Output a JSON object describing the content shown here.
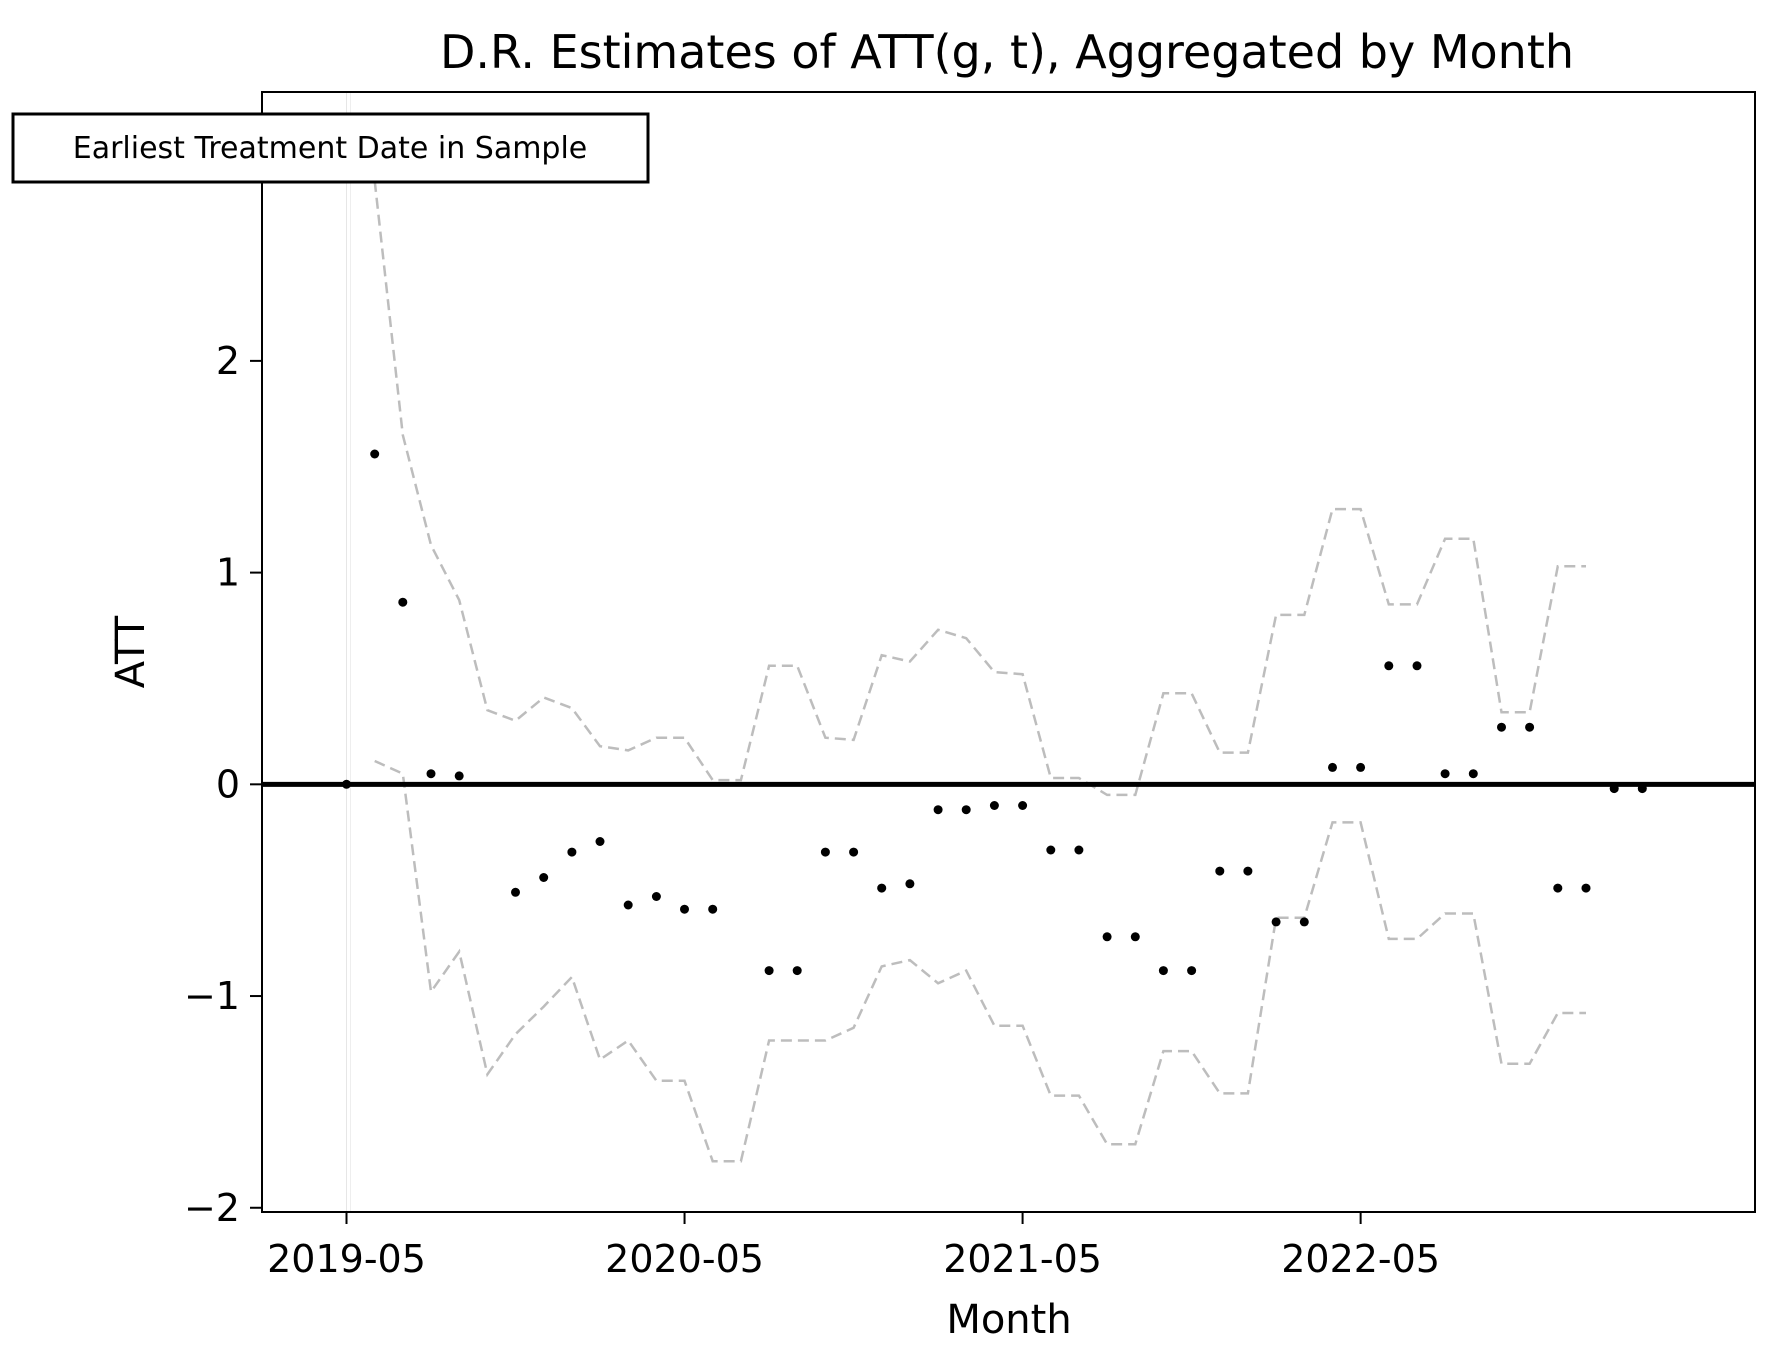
{
  "chart_data": {
    "type": "scatter",
    "title": "D.R. Estimates of ATT(g, t), Aggregated by Month",
    "xlabel": "Month",
    "ylabel": "ATT",
    "x_ticks": [
      "2019-05",
      "2020-05",
      "2021-05",
      "2022-05"
    ],
    "y_ticks": [
      -2,
      -1,
      0,
      1,
      2
    ],
    "y_tick_labels": [
      "−2",
      "−1",
      "0",
      "1",
      "2"
    ],
    "ylim": [
      -2.02,
      3.27
    ],
    "xlim": [
      "2019-02",
      "2023-07"
    ],
    "grid": false,
    "annotation": {
      "text": "Earliest Treatment Date in Sample",
      "x": "2019-05",
      "placement": "top-left"
    },
    "reference_line": {
      "y": 0,
      "color": "#000000"
    },
    "series": [
      {
        "role": "point-estimate",
        "color": "#000000",
        "marker": "dot",
        "x": [
          "2019-05",
          "2019-06",
          "2019-07",
          "2019-08",
          "2019-09",
          "2019-10",
          "2019-11",
          "2019-12",
          "2020-01",
          "2020-02",
          "2020-03",
          "2020-04",
          "2020-05",
          "2020-06",
          "2020-07",
          "2020-08",
          "2020-09",
          "2020-10",
          "2020-11",
          "2020-12",
          "2021-01",
          "2021-02",
          "2021-03",
          "2021-04",
          "2021-05",
          "2021-06",
          "2021-07",
          "2021-08",
          "2021-09",
          "2021-10",
          "2021-11",
          "2021-12",
          "2022-01",
          "2022-02",
          "2022-03",
          "2022-04",
          "2022-05",
          "2022-06",
          "2022-07",
          "2022-08",
          "2022-09",
          "2022-10",
          "2022-11",
          "2022-12",
          "2023-01",
          "2023-02",
          "2023-03",
          "2023-04",
          "2023-05",
          "2023-06"
        ],
        "values": [
          0.0,
          1.56,
          0.86,
          0.05,
          0.04,
          null,
          -0.51,
          -0.44,
          -0.32,
          -0.27,
          -0.57,
          -0.53,
          -0.59,
          -0.59,
          null,
          -0.88,
          -0.88,
          -0.32,
          -0.32,
          -0.49,
          -0.47,
          -0.12,
          -0.12,
          -0.1,
          -0.1,
          -0.31,
          -0.31,
          -0.72,
          -0.72,
          -0.88,
          -0.88,
          -0.41,
          -0.41,
          -0.65,
          -0.65,
          0.08,
          0.08,
          0.56,
          0.56,
          0.05,
          0.05,
          0.27,
          0.27,
          -0.49,
          -0.49,
          -0.02,
          -0.02,
          null,
          null,
          null
        ]
      },
      {
        "role": "upper-bound",
        "color": "#bdbdbd",
        "style": "dashed",
        "x": [
          "2019-06",
          "2019-07",
          "2019-08",
          "2019-09",
          "2019-10",
          "2019-11",
          "2019-12",
          "2020-01",
          "2020-02",
          "2020-03",
          "2020-04",
          "2020-05",
          "2020-06",
          "2020-07",
          "2020-08",
          "2020-09",
          "2020-10",
          "2020-11",
          "2020-12",
          "2021-01",
          "2021-02",
          "2021-03",
          "2021-04",
          "2021-05",
          "2021-06",
          "2021-07",
          "2021-08",
          "2021-09",
          "2021-10",
          "2021-11",
          "2021-12",
          "2022-01",
          "2022-02",
          "2022-03",
          "2022-04",
          "2022-05",
          "2022-06",
          "2022-07",
          "2022-08",
          "2022-09",
          "2022-10",
          "2022-11",
          "2022-12",
          "2023-01",
          "2023-02",
          "2023-03",
          "2023-04"
        ],
        "values": [
          2.85,
          1.65,
          1.13,
          0.87,
          0.35,
          0.3,
          0.41,
          0.36,
          0.18,
          0.16,
          0.22,
          0.22,
          0.02,
          0.02,
          0.56,
          0.56,
          0.22,
          0.21,
          0.61,
          0.58,
          0.73,
          0.69,
          0.53,
          0.52,
          0.03,
          0.03,
          -0.05,
          -0.05,
          0.43,
          0.43,
          0.15,
          0.15,
          0.8,
          0.8,
          1.3,
          1.3,
          0.85,
          0.85,
          1.16,
          1.16,
          0.34,
          0.34,
          1.03,
          1.03,
          null,
          null,
          null
        ]
      },
      {
        "role": "lower-bound",
        "color": "#bdbdbd",
        "style": "dashed",
        "x": [
          "2019-06",
          "2019-07",
          "2019-08",
          "2019-09",
          "2019-10",
          "2019-11",
          "2019-12",
          "2020-01",
          "2020-02",
          "2020-03",
          "2020-04",
          "2020-05",
          "2020-06",
          "2020-07",
          "2020-08",
          "2020-09",
          "2020-10",
          "2020-11",
          "2020-12",
          "2021-01",
          "2021-02",
          "2021-03",
          "2021-04",
          "2021-05",
          "2021-06",
          "2021-07",
          "2021-08",
          "2021-09",
          "2021-10",
          "2021-11",
          "2021-12",
          "2022-01",
          "2022-02",
          "2022-03",
          "2022-04",
          "2022-05",
          "2022-06",
          "2022-07",
          "2022-08",
          "2022-09",
          "2022-10",
          "2022-11",
          "2022-12",
          "2023-01",
          "2023-02",
          "2023-03",
          "2023-04"
        ],
        "values": [
          0.11,
          0.05,
          -0.98,
          -0.79,
          -1.37,
          -1.18,
          -1.05,
          -0.91,
          -1.3,
          -1.21,
          -1.4,
          -1.4,
          -1.78,
          -1.78,
          -1.21,
          -1.21,
          -1.21,
          -1.15,
          -0.86,
          -0.83,
          -0.94,
          -0.88,
          -1.14,
          -1.14,
          -1.47,
          -1.47,
          -1.7,
          -1.7,
          -1.26,
          -1.26,
          -1.46,
          -1.46,
          -0.63,
          -0.63,
          -0.18,
          -0.18,
          -0.73,
          -0.73,
          -0.61,
          -0.61,
          -1.32,
          -1.32,
          -1.08,
          -1.08,
          null,
          null,
          null
        ]
      }
    ]
  }
}
